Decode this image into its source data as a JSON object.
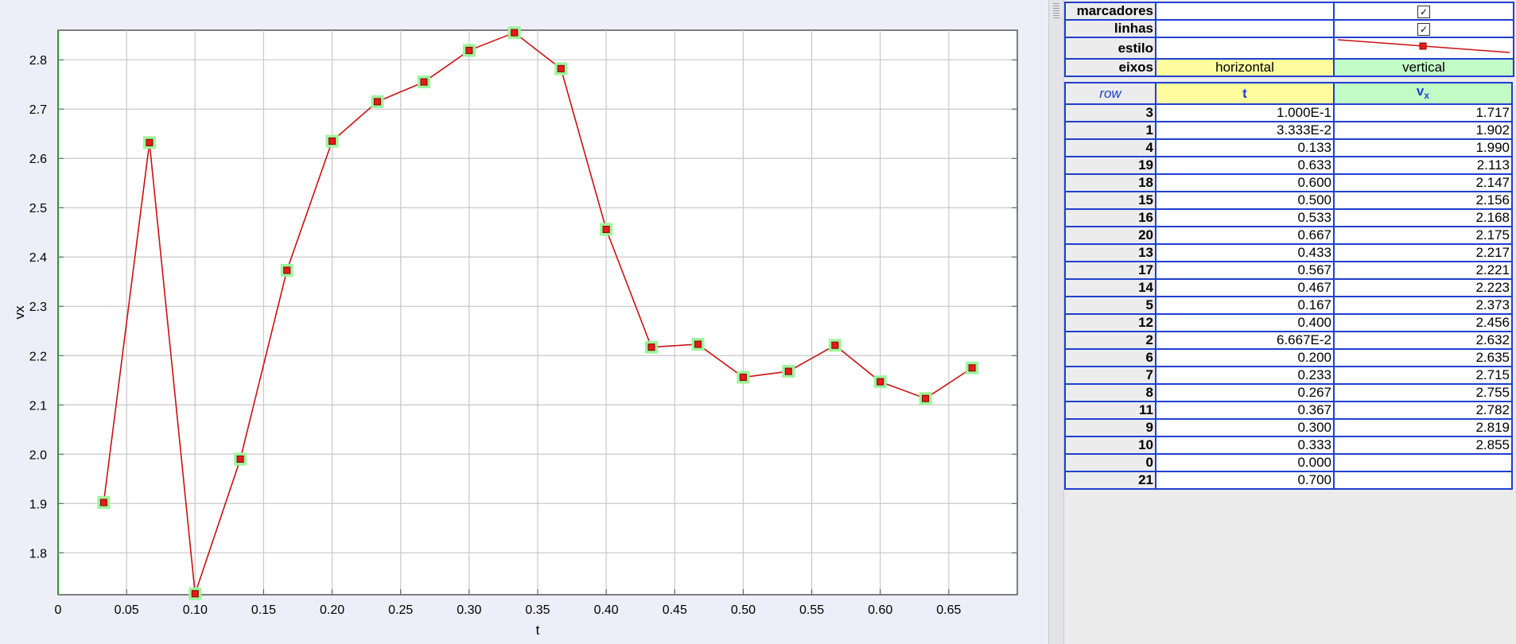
{
  "chart_data": {
    "type": "line",
    "xlabel": "t",
    "ylabel": "vx",
    "xlim": [
      0,
      0.7
    ],
    "ylim": [
      1.715,
      2.86
    ],
    "xticks": [
      "0",
      "0.05",
      "0.10",
      "0.15",
      "0.20",
      "0.25",
      "0.30",
      "0.35",
      "0.40",
      "0.45",
      "0.50",
      "0.55",
      "0.60",
      "0.65"
    ],
    "yticks": [
      "1.8",
      "1.9",
      "2.0",
      "2.1",
      "2.2",
      "2.3",
      "2.4",
      "2.5",
      "2.6",
      "2.7",
      "2.8"
    ],
    "grid": true,
    "markers": true,
    "lines": true,
    "line_color": "#cc1010",
    "marker_color": "#e51b1b",
    "marker_highlight": "#9cf59c",
    "series": [
      {
        "x": [
          0.0333,
          0.0667,
          0.1,
          0.133,
          0.167,
          0.2,
          0.233,
          0.267,
          0.3,
          0.333,
          0.367,
          0.4,
          0.433,
          0.467,
          0.5,
          0.533,
          0.567,
          0.6,
          0.633,
          0.667
        ],
        "values": [
          1.902,
          2.632,
          1.717,
          1.99,
          2.373,
          2.635,
          2.715,
          2.755,
          2.819,
          2.855,
          2.782,
          2.456,
          2.217,
          2.223,
          2.156,
          2.168,
          2.221,
          2.147,
          2.113,
          2.175
        ]
      }
    ]
  },
  "table": {
    "config": {
      "rows": [
        {
          "label": "marcadores",
          "checked": true
        },
        {
          "label": "linhas",
          "checked": true
        },
        {
          "label": "estilo"
        },
        {
          "label": "eixos",
          "horizontal": "horizontal",
          "vertical": "vertical"
        }
      ]
    },
    "header": {
      "row": "row",
      "t": "t",
      "v": "v",
      "v_sub": "x"
    },
    "rows": [
      {
        "row": "3",
        "t": "1.000E-1",
        "v": "1.717"
      },
      {
        "row": "1",
        "t": "3.333E-2",
        "v": "1.902"
      },
      {
        "row": "4",
        "t": "0.133",
        "v": "1.990"
      },
      {
        "row": "19",
        "t": "0.633",
        "v": "2.113"
      },
      {
        "row": "18",
        "t": "0.600",
        "v": "2.147"
      },
      {
        "row": "15",
        "t": "0.500",
        "v": "2.156"
      },
      {
        "row": "16",
        "t": "0.533",
        "v": "2.168"
      },
      {
        "row": "20",
        "t": "0.667",
        "v": "2.175"
      },
      {
        "row": "13",
        "t": "0.433",
        "v": "2.217"
      },
      {
        "row": "17",
        "t": "0.567",
        "v": "2.221"
      },
      {
        "row": "14",
        "t": "0.467",
        "v": "2.223"
      },
      {
        "row": "5",
        "t": "0.167",
        "v": "2.373"
      },
      {
        "row": "12",
        "t": "0.400",
        "v": "2.456"
      },
      {
        "row": "2",
        "t": "6.667E-2",
        "v": "2.632"
      },
      {
        "row": "6",
        "t": "0.200",
        "v": "2.635"
      },
      {
        "row": "7",
        "t": "0.233",
        "v": "2.715"
      },
      {
        "row": "8",
        "t": "0.267",
        "v": "2.755"
      },
      {
        "row": "11",
        "t": "0.367",
        "v": "2.782"
      },
      {
        "row": "9",
        "t": "0.300",
        "v": "2.819"
      },
      {
        "row": "10",
        "t": "0.333",
        "v": "2.855"
      },
      {
        "row": "0",
        "t": "0.000",
        "v": ""
      },
      {
        "row": "21",
        "t": "0.700",
        "v": ""
      }
    ]
  }
}
